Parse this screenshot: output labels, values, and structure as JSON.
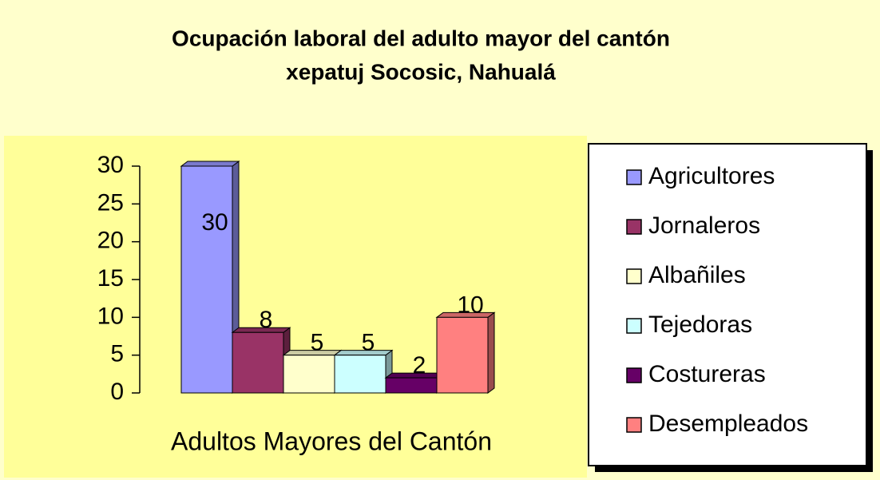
{
  "chart_data": {
    "type": "bar",
    "title": [
      "Ocupación laboral del adulto mayor del cantón",
      "xepatuj Socosic, Nahualá"
    ],
    "categories": [
      "Adultos Mayores del Cantón"
    ],
    "series": [
      {
        "name": "Agricultores",
        "color": "#9999FF",
        "values": [
          30
        ]
      },
      {
        "name": "Jornaleros",
        "color": "#993366",
        "values": [
          8
        ]
      },
      {
        "name": "Albañiles",
        "color": "#FFFFCC",
        "values": [
          5
        ]
      },
      {
        "name": "Tejedoras",
        "color": "#CCFFFF",
        "values": [
          5
        ]
      },
      {
        "name": "Costureras",
        "color": "#660066",
        "values": [
          2
        ]
      },
      {
        "name": "Desempleados",
        "color": "#FF8080",
        "values": [
          10
        ]
      }
    ],
    "ylim": [
      0,
      30
    ],
    "yticks": [
      0,
      5,
      10,
      15,
      20,
      25,
      30
    ],
    "legend": "right"
  }
}
